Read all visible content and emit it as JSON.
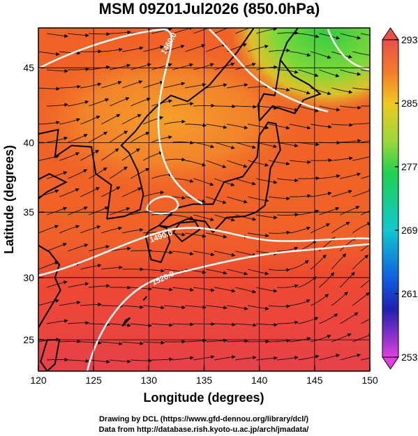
{
  "title": "MSM 09Z01Jul2026 (850.0hPa)",
  "x_label": "Longitude (degrees)",
  "y_label": "Latitude  (degrees)",
  "projection": "mercator",
  "xlim": [
    120,
    150
  ],
  "xticks": [
    120,
    125,
    130,
    135,
    140,
    145,
    150
  ],
  "ylim": [
    22.4,
    47.5
  ],
  "yticks": [
    25,
    30,
    35,
    40,
    45
  ],
  "colorbar": {
    "lim": [
      253,
      293
    ],
    "ticks": [
      253,
      261,
      269,
      277,
      285,
      293
    ]
  },
  "contour_labels": [
    "1460.0",
    "1490.0",
    "1520.0"
  ],
  "credits": [
    "Drawing by DCL (https://www.gfd-dennou.org/library/dcl/)",
    "Data from http://database.rish.kyoto-u.ac.jp/arch/jmadata/"
  ]
}
